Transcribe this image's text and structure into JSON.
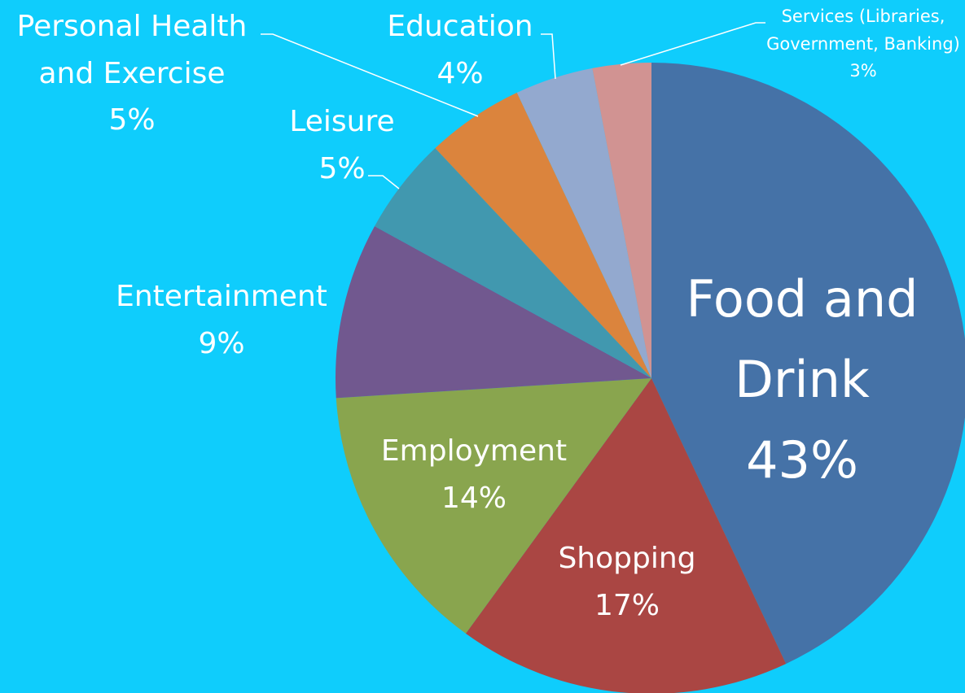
{
  "chart_data": {
    "type": "pie",
    "categories": [
      "Food and Drink",
      "Shopping",
      "Employment",
      "Entertainment",
      "Leisure",
      "Personal Health and Exercise",
      "Education",
      "Services (Libraries, Government, Banking)"
    ],
    "values": [
      43,
      17,
      14,
      9,
      5,
      5,
      4,
      3
    ],
    "value_labels": [
      "43%",
      "17%",
      "14%",
      "9%",
      "5%",
      "5%",
      "4%",
      "3%"
    ],
    "colors": [
      "#4572a7",
      "#aa4643",
      "#89a54e",
      "#71588f",
      "#4198af",
      "#db843d",
      "#93a9cf",
      "#d19392"
    ]
  }
}
